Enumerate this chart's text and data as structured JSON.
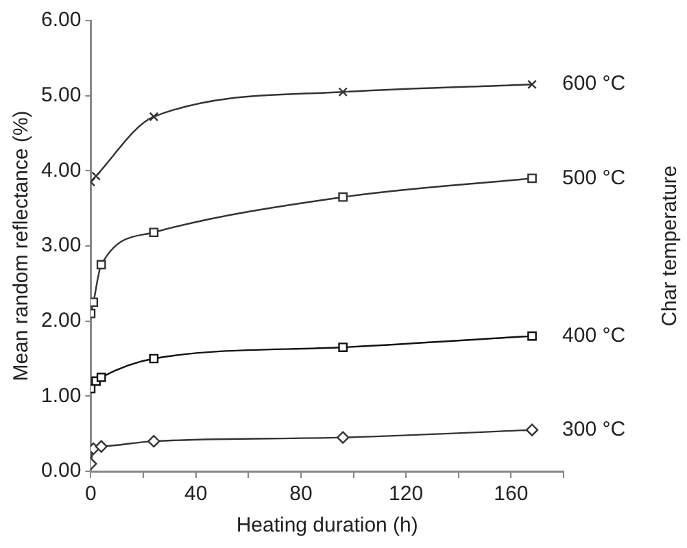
{
  "chart_data": {
    "type": "line",
    "xlabel": "Heating duration (h)",
    "ylabel": "Mean random reflectance (%)",
    "y2label": "Char temperature",
    "xlim": [
      0,
      180
    ],
    "xticks": [
      0,
      {
        "value": 20,
        "label": null
      },
      40,
      {
        "value": 60,
        "label": null
      },
      80,
      {
        "value": 100,
        "label": null
      },
      120,
      {
        "value": 140,
        "label": null
      },
      160,
      {
        "value": 180,
        "label": null
      }
    ],
    "ylim": [
      0,
      6
    ],
    "yticks": [
      {
        "value": 0,
        "label": "0.00"
      },
      {
        "value": 1,
        "label": "1.00"
      },
      {
        "value": 2,
        "label": "2.00"
      },
      {
        "value": 3,
        "label": "3.00"
      },
      {
        "value": 4,
        "label": "4.00"
      },
      {
        "value": 5,
        "label": "5.00"
      },
      {
        "value": 6,
        "label": "6.00"
      }
    ],
    "grid": false,
    "legend": false,
    "line_style": "solid",
    "series": [
      {
        "name": "600 °C",
        "color": "#333333",
        "marker": "cross",
        "x": [
          0,
          2,
          24,
          96,
          168
        ],
        "values": [
          3.85,
          3.93,
          4.72,
          5.05,
          5.15
        ]
      },
      {
        "name": "500 °C",
        "color": "#333333",
        "marker": "square",
        "x": [
          0,
          1,
          4,
          24,
          96,
          168
        ],
        "values": [
          2.1,
          2.25,
          2.75,
          3.18,
          3.65,
          3.9
        ]
      },
      {
        "name": "400 °C",
        "color": "#111111",
        "marker": "square",
        "x": [
          0,
          2,
          4,
          24,
          96,
          168
        ],
        "values": [
          1.1,
          1.2,
          1.25,
          1.5,
          1.65,
          1.8
        ]
      },
      {
        "name": "300 °C",
        "color": "#333333",
        "marker": "diamond",
        "x": [
          0,
          1,
          4,
          24,
          96,
          168
        ],
        "values": [
          0.1,
          0.3,
          0.33,
          0.4,
          0.45,
          0.55
        ]
      }
    ]
  }
}
